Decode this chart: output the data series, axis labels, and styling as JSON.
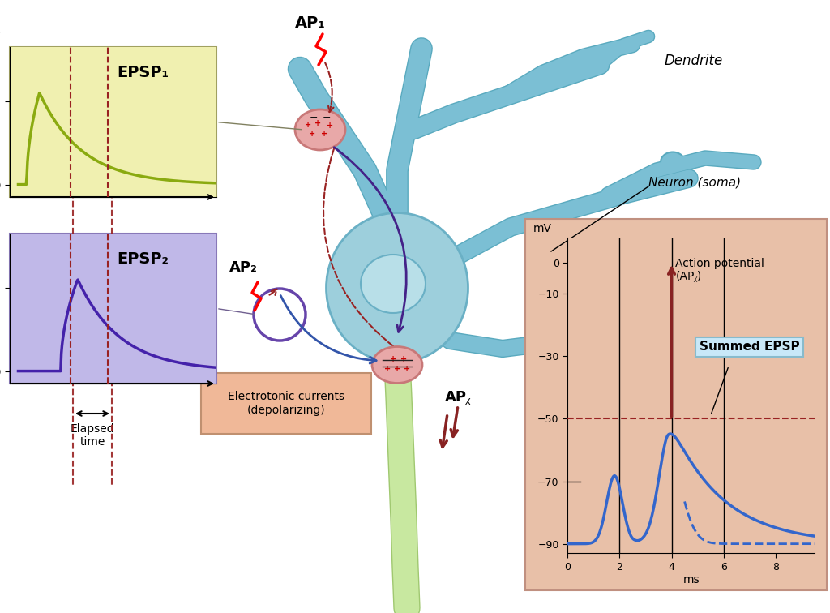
{
  "bg_color": "#ffffff",
  "soma_color": "#9dcfdc",
  "soma_edge": "#6ab0c5",
  "dendrite_color": "#7bbfd4",
  "dendrite_edge": "#5aaabf",
  "nucleus_color": "#b8dfe8",
  "axon_fill": "#c8e8a0",
  "axon_edge": "#a0c870",
  "synapse1_color": "#e8a8a8",
  "synapse1_edge": "#c87878",
  "synapse2_color": "#e8a8a8",
  "synapse2_edge": "#c87878",
  "epsp1_bg": "#f0f0b0",
  "epsp1_edge": "#a0a060",
  "epsp1_line": "#8aaa10",
  "epsp2_bg": "#c0b8e8",
  "epsp2_edge": "#8878b8",
  "epsp2_line": "#4422aa",
  "summed_bg": "#e8c0a8",
  "summed_edge": "#c09080",
  "summed_line": "#3366cc",
  "ap_color": "#882222",
  "elapsed_color": "#333333",
  "red_dashed": "#992222",
  "purple_arrow": "#442288",
  "blue_arrow": "#224488",
  "label_AP1": "AP₁",
  "label_AP2": "AP₂",
  "label_APA": "AP⁁",
  "label_EPSP1": "EPSP₁",
  "label_EPSP2": "EPSP₂",
  "label_dendrite": "Dendrite",
  "label_neuron": "Neuron (soma)",
  "label_electrotonic": "Electrotonic currents\n(depolarizing)",
  "label_summed": "Summed EPSP",
  "label_action": "Action potential\n(AP⁁)",
  "label_elapsed": "Elapsed\ntime",
  "figsize": [
    10.24,
    7.56
  ],
  "dpi": 100
}
